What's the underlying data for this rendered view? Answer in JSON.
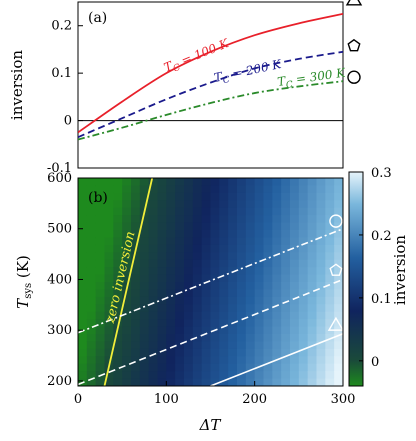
{
  "chart_data": [
    {
      "type": "line",
      "panel_label": "(a)",
      "ylabel": "inversion",
      "xlim": [
        0,
        300
      ],
      "ylim": [
        -0.1,
        0.25
      ],
      "yticks": [
        "-0.1",
        "0",
        "0.1",
        "0.2"
      ],
      "ytick_values": [
        -0.1,
        0,
        0.1,
        0.2
      ],
      "series": [
        {
          "name": "T_C = 100 K",
          "label_main": "T",
          "label_sub": "C",
          "label_rest": " = 100 K",
          "color": "#e8202a",
          "dash": "solid",
          "x": [
            0,
            50,
            100,
            150,
            200,
            250,
            300
          ],
          "y": [
            -0.025,
            0.04,
            0.1,
            0.145,
            0.18,
            0.205,
            0.225
          ]
        },
        {
          "name": "T_C = 200 K",
          "label_main": "T",
          "label_sub": "C",
          "label_rest": " = 200 K",
          "color": "#1a1a8c",
          "dash": "dashed",
          "x": [
            0,
            50,
            100,
            150,
            200,
            250,
            300
          ],
          "y": [
            -0.035,
            0.005,
            0.045,
            0.08,
            0.11,
            0.13,
            0.145
          ]
        },
        {
          "name": "T_C = 300 K",
          "label_main": "T",
          "label_sub": "C",
          "label_rest": " = 300 K",
          "color": "#2a8a2a",
          "dash": "dashdot",
          "x": [
            0,
            50,
            100,
            150,
            200,
            250,
            300
          ],
          "y": [
            -0.04,
            -0.015,
            0.012,
            0.037,
            0.058,
            0.072,
            0.083
          ]
        }
      ],
      "markers": [
        {
          "shape": "triangle",
          "y": 0.225
        },
        {
          "shape": "pentagon",
          "y": 0.145
        },
        {
          "shape": "circle",
          "y": 0.083
        }
      ]
    },
    {
      "type": "heatmap",
      "panel_label": "(b)",
      "xlabel_main": "ΔT",
      "ylabel_main": "T",
      "ylabel_sub": "sys",
      "ylabel_rest": " (K)",
      "xlim": [
        0,
        300
      ],
      "ylim": [
        190,
        600
      ],
      "xticks": [
        "0",
        "100",
        "200",
        "300"
      ],
      "xtick_values": [
        0,
        100,
        200,
        300
      ],
      "yticks": [
        "200",
        "300",
        "400",
        "500",
        "600"
      ],
      "ytick_values": [
        200,
        300,
        400,
        500,
        600
      ],
      "colorbar": {
        "label": "inversion",
        "range": [
          -0.04,
          0.3
        ],
        "ticks": [
          "0",
          "0.1",
          "0.2",
          "0.3"
        ],
        "tick_values": [
          0,
          0.1,
          0.2,
          0.3
        ]
      },
      "zero_inversion_label": "zero inversion",
      "zero_inversion_line": {
        "x": [
          30,
          84
        ],
        "y": [
          190,
          600
        ]
      },
      "contours": [
        {
          "style": "dashdot",
          "x": [
            0,
            300
          ],
          "y": [
            295,
            500
          ]
        },
        {
          "style": "dashed",
          "x": [
            0,
            300
          ],
          "y": [
            193,
            400
          ]
        },
        {
          "style": "solid",
          "x": [
            150,
            300
          ],
          "y": [
            190,
            293
          ]
        }
      ],
      "markers": [
        {
          "shape": "circle",
          "x": 292,
          "y": 515
        },
        {
          "shape": "pentagon",
          "x": 292,
          "y": 418
        },
        {
          "shape": "triangle",
          "x": 292,
          "y": 310
        }
      ]
    }
  ]
}
